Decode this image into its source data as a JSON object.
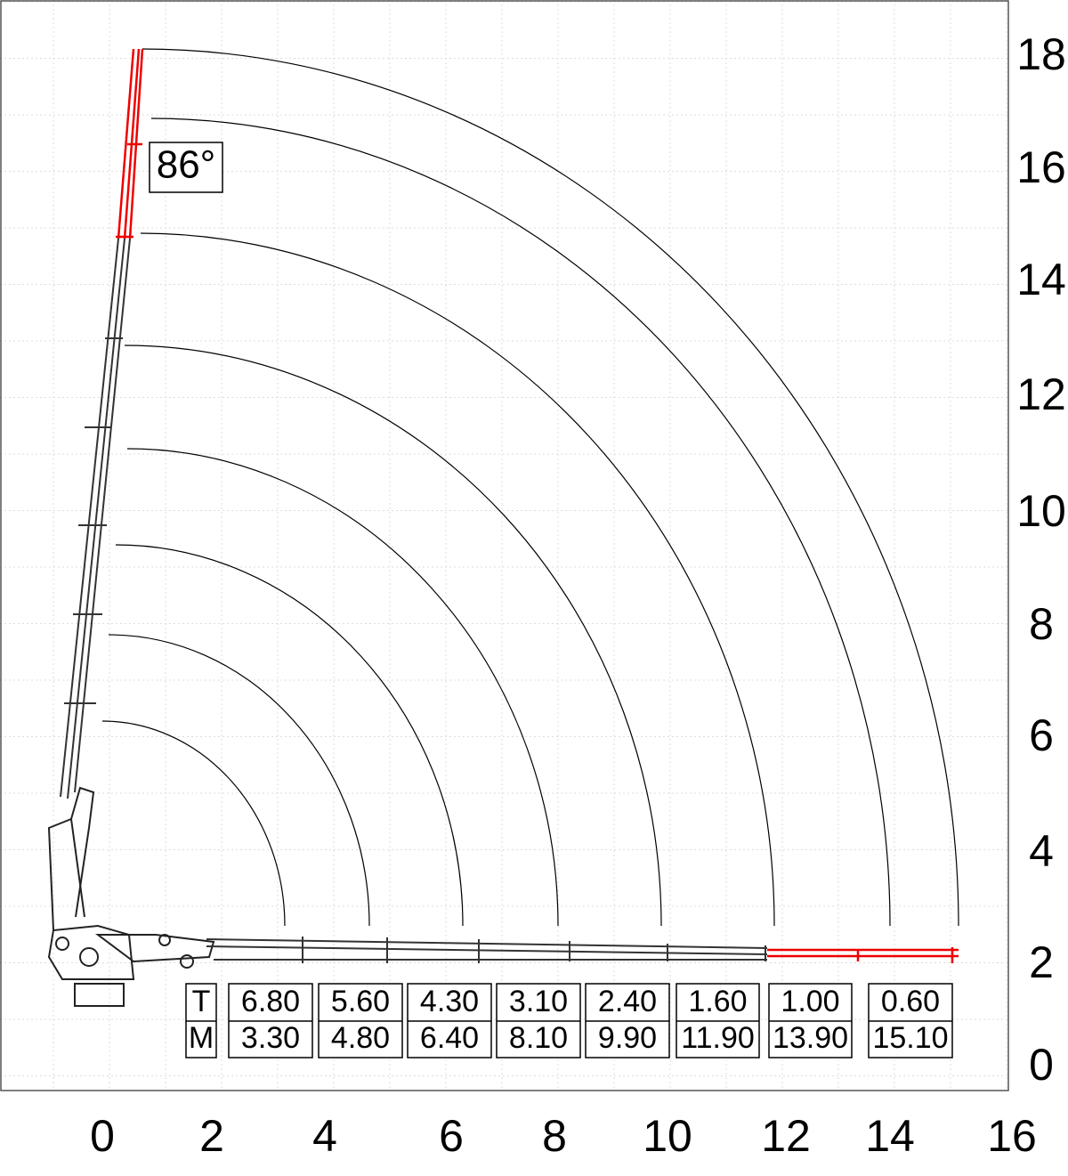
{
  "angle": "86°",
  "x_axis": {
    "labels": [
      "0",
      "2",
      "4",
      "6",
      "8",
      "10",
      "12",
      "14",
      "16"
    ]
  },
  "y_axis": {
    "labels": [
      "18",
      "16",
      "14",
      "12",
      "10",
      "8",
      "6",
      "4",
      "2",
      "0"
    ]
  },
  "table": {
    "row_headers": [
      "T",
      "M"
    ],
    "columns": [
      [
        "6.80",
        "3.30"
      ],
      [
        "5.60",
        "4.80"
      ],
      [
        "4.30",
        "6.40"
      ],
      [
        "3.10",
        "8.10"
      ],
      [
        "2.40",
        "9.90"
      ],
      [
        "1.60",
        "11.90"
      ],
      [
        "1.00",
        "13.90"
      ],
      [
        "0.60",
        "15.10"
      ]
    ]
  }
}
